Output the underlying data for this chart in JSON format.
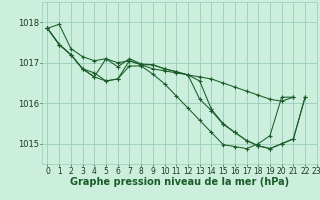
{
  "background_color": "#cceedd",
  "grid_color": "#99ccbb",
  "line_color": "#1a5c28",
  "xlabel": "Graphe pression niveau de la mer (hPa)",
  "xlabel_fontsize": 7,
  "tick_fontsize": 6,
  "xlim": [
    -0.5,
    23
  ],
  "ylim": [
    1014.5,
    1018.5
  ],
  "yticks": [
    1015,
    1016,
    1017,
    1018
  ],
  "xticks": [
    0,
    1,
    2,
    3,
    4,
    5,
    6,
    7,
    8,
    9,
    10,
    11,
    12,
    13,
    14,
    15,
    16,
    17,
    18,
    19,
    20,
    21,
    22,
    23
  ],
  "series": [
    [
      1017.85,
      1017.95,
      1017.35,
      1017.15,
      1017.05,
      1017.1,
      1017.0,
      1017.05,
      1016.95,
      1016.85,
      1016.8,
      1016.75,
      1016.7,
      1016.65,
      1016.6,
      1016.5,
      1016.4,
      1016.3,
      1016.2,
      1016.1,
      1016.05,
      1016.15,
      null,
      null
    ],
    [
      1017.85,
      1017.45,
      1017.2,
      1016.85,
      1016.75,
      1016.55,
      1016.6,
      1017.05,
      1016.95,
      1016.95,
      1016.85,
      1016.78,
      1016.7,
      1016.55,
      1015.85,
      1015.5,
      1015.28,
      1015.08,
      1014.95,
      1014.88,
      1015.0,
      1015.12,
      1016.15,
      null
    ],
    [
      1017.85,
      1017.45,
      1017.2,
      1016.85,
      1016.65,
      1017.1,
      1016.9,
      1017.1,
      1016.97,
      1016.95,
      1016.85,
      1016.78,
      1016.7,
      1016.1,
      1015.82,
      1015.48,
      1015.28,
      1015.08,
      1014.95,
      1014.88,
      1015.0,
      1015.12,
      1016.15,
      null
    ],
    [
      1017.85,
      1017.45,
      1017.2,
      1016.85,
      1016.65,
      1016.55,
      1016.6,
      1016.92,
      1016.92,
      1016.72,
      1016.48,
      1016.18,
      1015.88,
      1015.58,
      1015.28,
      1014.98,
      1014.93,
      1014.88,
      1015.0,
      1015.2,
      1016.15,
      1016.15,
      null,
      null
    ]
  ]
}
